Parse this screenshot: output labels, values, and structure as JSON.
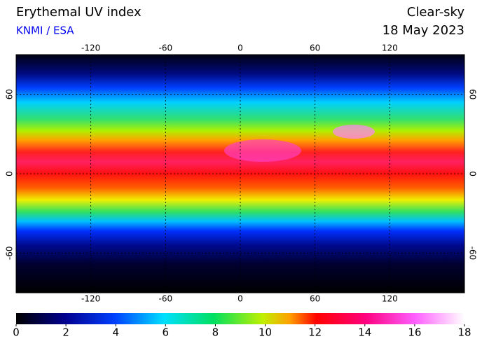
{
  "header": {
    "title": "Erythemal UV index",
    "credit": "KNMI / ESA",
    "sky": "Clear-sky",
    "date": "18 May 2023"
  },
  "map": {
    "lon_range": [
      -180,
      180
    ],
    "lat_range": [
      90,
      -90
    ],
    "lon_ticks": [
      -120,
      -60,
      0,
      60,
      120
    ],
    "lat_ticks": [
      60,
      0,
      -60
    ]
  },
  "colorbar": {
    "range": [
      0,
      18
    ],
    "ticks": [
      0,
      2,
      4,
      6,
      8,
      10,
      12,
      14,
      16,
      18
    ]
  }
}
